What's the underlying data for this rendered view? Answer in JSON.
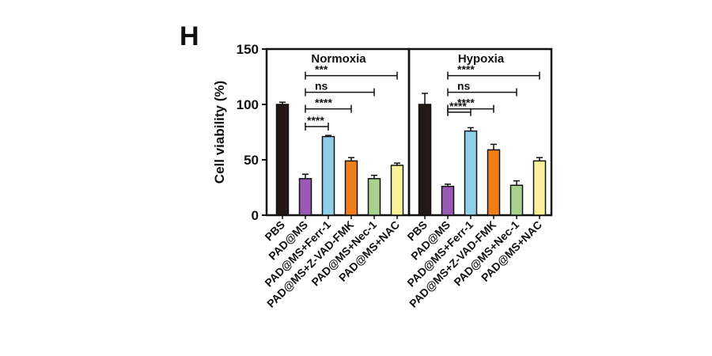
{
  "panel_letter": "H",
  "chart_data": {
    "type": "bar",
    "ylabel": "Cell viability (%)",
    "ylim": [
      0,
      150
    ],
    "yticks": [
      0,
      50,
      100,
      150
    ],
    "categories": [
      "PBS",
      "PAD@MS",
      "PAD@MS+Ferr-1",
      "PAD@MS+Z-VAD-FMK",
      "PAD@MS+Nec-1",
      "PAD@MS+NAC"
    ],
    "colors": [
      "#231815",
      "#9b59b6",
      "#8fd0e8",
      "#ef7d1a",
      "#a9d18e",
      "#fbf19a"
    ],
    "panels": [
      {
        "title": "Normoxia",
        "values": [
          100,
          33,
          71,
          49,
          33,
          45
        ],
        "errors": [
          2,
          4,
          1,
          3,
          3,
          2
        ],
        "comparisons": [
          {
            "from": 1,
            "to": 5,
            "label": "***",
            "y": 126
          },
          {
            "from": 1,
            "to": 4,
            "label": "ns",
            "y": 111
          },
          {
            "from": 1,
            "to": 3,
            "label": "****",
            "y": 96
          },
          {
            "from": 1,
            "to": 2,
            "label": "****",
            "y": 80
          }
        ]
      },
      {
        "title": "Hypoxia",
        "values": [
          100,
          26,
          76,
          59,
          27,
          49
        ],
        "errors": [
          10,
          2,
          3,
          5,
          4,
          3
        ],
        "comparisons": [
          {
            "from": 1,
            "to": 5,
            "label": "****",
            "y": 126
          },
          {
            "from": 1,
            "to": 4,
            "label": "ns",
            "y": 111
          },
          {
            "from": 1,
            "to": 3,
            "label": "****",
            "y": 96
          },
          {
            "from": 1,
            "to": 2,
            "label": "****",
            "y": 93
          }
        ]
      }
    ]
  }
}
